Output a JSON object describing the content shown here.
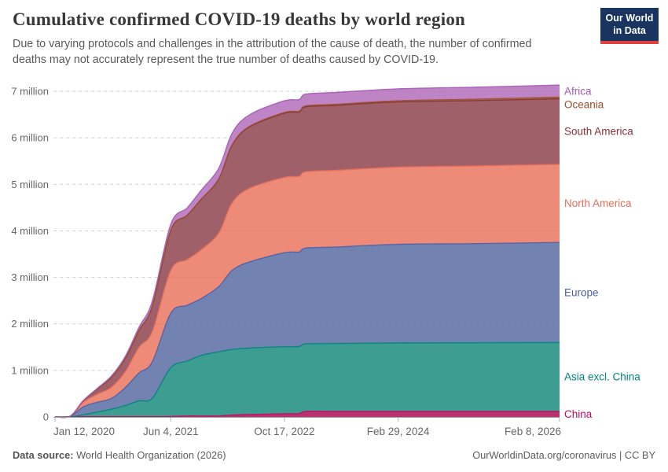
{
  "header": {
    "title": "Cumulative confirmed COVID-19 deaths by world region",
    "subtitle": "Due to varying protocols and challenges in the attribution of the cause of death, the number of confirmed deaths may not accurately represent the true number of deaths caused by COVID-19."
  },
  "logo": {
    "line1": "Our World",
    "line2": "in Data"
  },
  "footer": {
    "source_label": "Data source:",
    "source_value": " World Health Organization (2026)",
    "right_text": "OurWorldinData.org/coronavirus | CC BY"
  },
  "chart_data": {
    "type": "area",
    "stacked": true,
    "title": "Cumulative confirmed COVID-19 deaths by world region",
    "unit": "deaths (millions)",
    "grid": true,
    "legend_position": "right",
    "ylim_millions": [
      0,
      7.4
    ],
    "x_start_date": "2020-01-12",
    "x_end_date": "2026-02-08",
    "x_total_days": 2219,
    "x_dates": [
      "2020-01-12",
      "2020-03-20",
      "2020-05-15",
      "2020-07-15",
      "2020-09-15",
      "2020-11-15",
      "2021-01-15",
      "2021-03-15",
      "2021-06-04",
      "2021-08-15",
      "2021-10-15",
      "2022-01-01",
      "2022-03-01",
      "2022-05-15",
      "2022-10-17",
      "2022-12-20",
      "2023-01-20",
      "2023-06-01",
      "2024-02-29",
      "2025-02-01",
      "2026-02-08"
    ],
    "x_days": [
      0,
      68,
      124,
      185,
      247,
      308,
      369,
      428,
      509,
      581,
      642,
      720,
      779,
      854,
      1009,
      1073,
      1104,
      1236,
      1509,
      1847,
      2219
    ],
    "yticks": [
      {
        "value": 0,
        "label": "0"
      },
      {
        "value": 1,
        "label": "1 million"
      },
      {
        "value": 2,
        "label": "2 million"
      },
      {
        "value": 3,
        "label": "3 million"
      },
      {
        "value": 4,
        "label": "4 million"
      },
      {
        "value": 5,
        "label": "5 million"
      },
      {
        "value": 6,
        "label": "6 million"
      },
      {
        "value": 7,
        "label": "7 million"
      }
    ],
    "xticks": [
      {
        "label": "Jan 12, 2020",
        "day": 0,
        "align": "start"
      },
      {
        "label": "Jun 4, 2021",
        "day": 509,
        "align": "middle"
      },
      {
        "label": "Oct 17, 2022",
        "day": 1009,
        "align": "middle"
      },
      {
        "label": "Feb 29, 2024",
        "day": 1509,
        "align": "middle"
      },
      {
        "label": "Feb 8, 2026",
        "day": 2219,
        "align": "end"
      }
    ],
    "series": [
      {
        "name": "China",
        "fill": "#b42a68",
        "line": "#c10a65",
        "values_millions": [
          0,
          0.003,
          0.005,
          0.005,
          0.005,
          0.005,
          0.005,
          0.005,
          0.01,
          0.02,
          0.02,
          0.02,
          0.04,
          0.05,
          0.07,
          0.072,
          0.12,
          0.12,
          0.12,
          0.12,
          0.12
        ]
      },
      {
        "name": "Asia excl. China",
        "fill": "#35998b",
        "line": "#00847e",
        "values_millions": [
          0,
          0.003,
          0.04,
          0.1,
          0.16,
          0.24,
          0.34,
          0.4,
          1.05,
          1.18,
          1.3,
          1.38,
          1.41,
          1.43,
          1.44,
          1.442,
          1.45,
          1.46,
          1.47,
          1.475,
          1.48
        ]
      },
      {
        "name": "Europe",
        "fill": "#6d7eae",
        "line": "#4a5fa8",
        "values_millions": [
          0,
          0.01,
          0.17,
          0.21,
          0.23,
          0.38,
          0.6,
          0.78,
          1.17,
          1.2,
          1.22,
          1.4,
          1.7,
          1.85,
          2.02,
          2.03,
          2.06,
          2.07,
          2.12,
          2.13,
          2.15
        ]
      },
      {
        "name": "North America",
        "fill": "#ec8572",
        "line": "#e56e5a",
        "values_millions": [
          0,
          0.003,
          0.1,
          0.17,
          0.24,
          0.34,
          0.55,
          0.65,
          0.92,
          0.98,
          1.05,
          1.15,
          1.45,
          1.58,
          1.62,
          1.625,
          1.64,
          1.65,
          1.66,
          1.67,
          1.68
        ]
      },
      {
        "name": "South America",
        "fill": "#9c5a64",
        "line": "#883039",
        "values_millions": [
          0,
          0.001,
          0.03,
          0.11,
          0.21,
          0.28,
          0.36,
          0.55,
          0.86,
          0.95,
          1.08,
          1.16,
          1.24,
          1.32,
          1.38,
          1.385,
          1.395,
          1.398,
          1.4,
          1.405,
          1.41
        ]
      },
      {
        "name": "Oceania",
        "fill": "#a9714a",
        "line": "#9a5129",
        "values_millions": [
          0,
          0,
          0.001,
          0.001,
          0.001,
          0.001,
          0.001,
          0.001,
          0.002,
          0.003,
          0.004,
          0.005,
          0.008,
          0.01,
          0.015,
          0.016,
          0.02,
          0.022,
          0.026,
          0.03,
          0.033
        ]
      },
      {
        "name": "Africa",
        "fill": "#bc7fc4",
        "line": "#a65ab5",
        "values_millions": [
          0,
          0.001,
          0.003,
          0.015,
          0.03,
          0.045,
          0.07,
          0.105,
          0.13,
          0.16,
          0.19,
          0.23,
          0.25,
          0.25,
          0.25,
          0.251,
          0.254,
          0.255,
          0.256,
          0.258,
          0.26
        ]
      }
    ],
    "final_totals_note": "stack order bottom-to-top: China, Asia excl. China, Europe, North America, South America, Oceania, Africa"
  }
}
